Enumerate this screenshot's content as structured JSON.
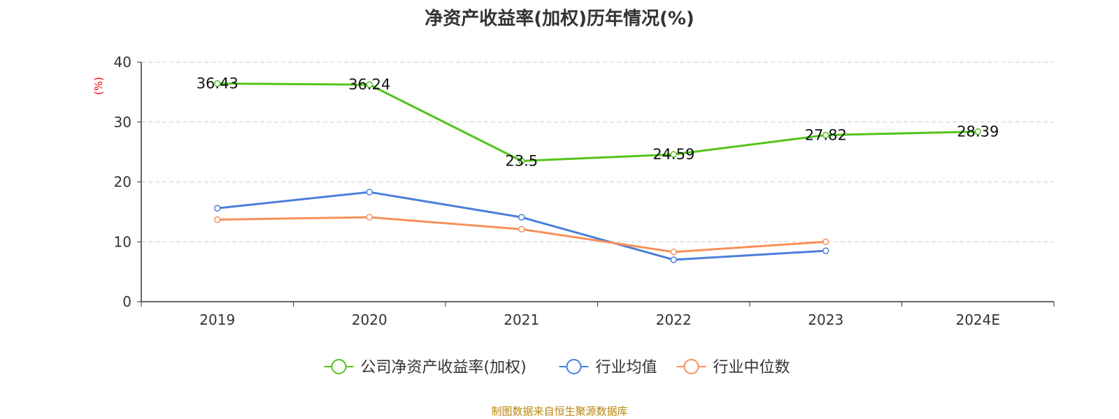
{
  "chart_data": {
    "type": "line",
    "title": "净资产收益率(加权)历年情况(%)",
    "ylabel": "(%)",
    "xlabel": "",
    "categories": [
      "2019",
      "2020",
      "2021",
      "2022",
      "2023",
      "2024E"
    ],
    "ylim": [
      0,
      40
    ],
    "yticks": [
      0,
      10,
      20,
      30,
      40
    ],
    "grid": true,
    "legend_position": "bottom",
    "series": [
      {
        "name": "公司净资产收益率(加权)",
        "color": "#52c41a",
        "values": [
          36.43,
          36.24,
          23.5,
          24.59,
          27.82,
          28.39
        ],
        "show_labels": true
      },
      {
        "name": "行业均值",
        "color": "#4a7fdb",
        "values": [
          15.6,
          18.3,
          14.1,
          7.0,
          8.5,
          null
        ],
        "show_labels": false
      },
      {
        "name": "行业中位数",
        "color": "#f7905a",
        "values": [
          13.7,
          14.1,
          12.1,
          8.3,
          10.0,
          null
        ],
        "show_labels": false
      }
    ]
  },
  "footer": "制图数据来自恒生聚源数据库"
}
